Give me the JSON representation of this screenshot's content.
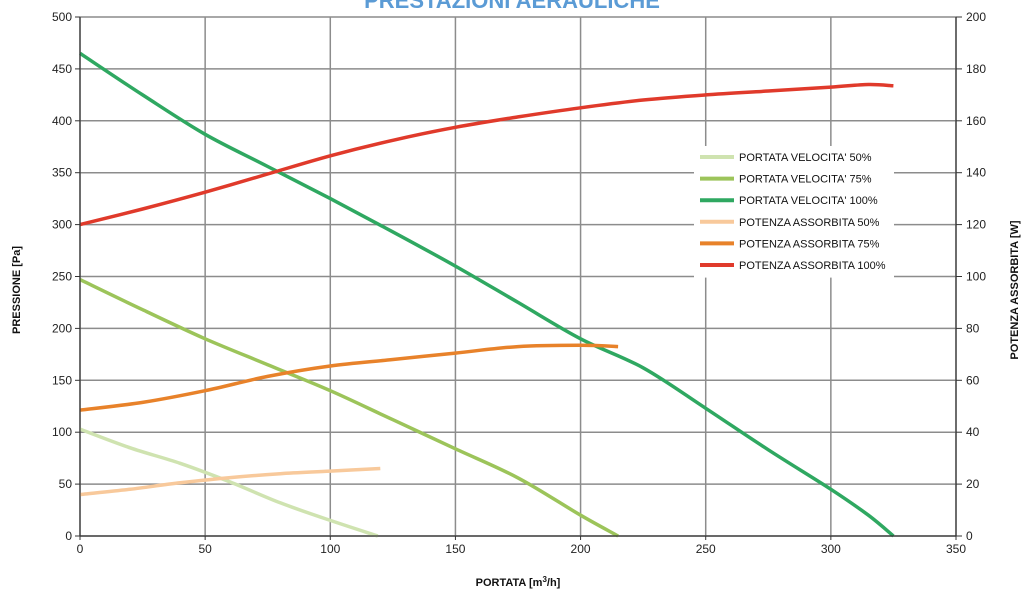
{
  "chart_data": {
    "type": "line",
    "title": "PRESTAZIONI AERAULICHE",
    "xlabel": "PORTATA [m³/h]",
    "ylabel": "PRESSIONE [Pa]",
    "y2label": "POTENZA ASSORBITA [W]",
    "xlim": [
      0,
      350
    ],
    "ylim": [
      0,
      500
    ],
    "y2lim": [
      0,
      200
    ],
    "xticks": [
      0,
      50,
      100,
      150,
      200,
      250,
      300,
      350
    ],
    "yticks": [
      0,
      50,
      100,
      150,
      200,
      250,
      300,
      350,
      400,
      450,
      500
    ],
    "y2ticks": [
      0,
      20,
      40,
      60,
      80,
      100,
      120,
      140,
      160,
      180,
      200
    ],
    "grid": true,
    "legend_position": "right",
    "series": [
      {
        "name": "PORTATA VELOCITA' 50%",
        "axis": "left",
        "color": "#cfe3b0",
        "x": [
          0,
          20,
          40,
          60,
          80,
          100,
          119
        ],
        "y": [
          103,
          85,
          70,
          52,
          32,
          15,
          0
        ]
      },
      {
        "name": "PORTATA VELOCITA' 75%",
        "axis": "left",
        "color": "#9cc45a",
        "x": [
          0,
          25,
          50,
          75,
          100,
          125,
          150,
          175,
          200,
          215
        ],
        "y": [
          247,
          218,
          190,
          165,
          140,
          112,
          84,
          56,
          20,
          0
        ]
      },
      {
        "name": "PORTATA VELOCITA' 100%",
        "axis": "left",
        "color": "#2fa861",
        "x": [
          0,
          25,
          50,
          75,
          100,
          125,
          150,
          175,
          200,
          225,
          250,
          275,
          300,
          315,
          325
        ],
        "y": [
          465,
          425,
          387,
          356,
          325,
          293,
          260,
          225,
          190,
          162,
          123,
          83,
          45,
          20,
          0
        ]
      },
      {
        "name": "POTENZA ASSORBITA 50%",
        "axis": "right",
        "color": "#f8c99b",
        "x": [
          0,
          20,
          40,
          60,
          80,
          100,
          120
        ],
        "y": [
          16,
          18,
          20.5,
          22.5,
          24,
          25,
          26
        ]
      },
      {
        "name": "POTENZA ASSORBITA 75%",
        "axis": "right",
        "color": "#e8822a",
        "x": [
          0,
          25,
          50,
          75,
          100,
          125,
          150,
          175,
          200,
          215
        ],
        "y": [
          48.5,
          51.5,
          56,
          61.5,
          65.5,
          68,
          70.5,
          73,
          73.5,
          73
        ]
      },
      {
        "name": "POTENZA ASSORBITA 100%",
        "axis": "right",
        "color": "#e03a2b",
        "x": [
          0,
          25,
          50,
          75,
          100,
          125,
          150,
          175,
          200,
          225,
          250,
          275,
          300,
          315,
          325
        ],
        "y": [
          120,
          126,
          132.5,
          139.5,
          146.5,
          152.5,
          157.5,
          161.5,
          165,
          168,
          170,
          171.5,
          173,
          174,
          173.5
        ]
      }
    ]
  }
}
